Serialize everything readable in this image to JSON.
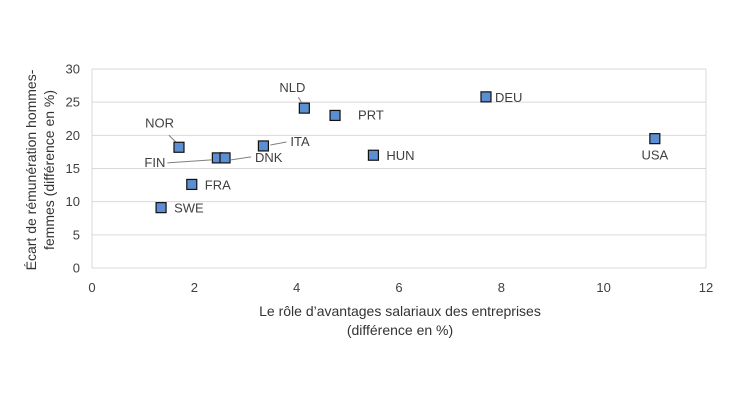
{
  "chart_data": {
    "type": "scatter",
    "xlabel_lines": [
      "Le rôle d’avantages salariaux des entreprises",
      "(différence en %)"
    ],
    "ylabel_lines": [
      "Écart de rémunération hommes-",
      "femmes (différence en %)"
    ],
    "xlim": [
      0,
      12
    ],
    "ylim": [
      0,
      30
    ],
    "xticks": [
      0,
      2,
      4,
      6,
      8,
      10,
      12
    ],
    "yticks": [
      0,
      5,
      10,
      15,
      20,
      25,
      30
    ],
    "grid": "horizontal",
    "colors": {
      "marker": "#5b8fd1",
      "marker_edge": "#111111",
      "grid": "#d9d9d9",
      "leader": "#7f7f7f"
    },
    "points": [
      {
        "label": "NOR",
        "x": 1.7,
        "y": 18.2
      },
      {
        "label": "FIN",
        "x": 2.45,
        "y": 16.6
      },
      {
        "label": "DNK",
        "x": 2.6,
        "y": 16.6
      },
      {
        "label": "FRA",
        "x": 1.95,
        "y": 12.6
      },
      {
        "label": "SWE",
        "x": 1.35,
        "y": 9.1
      },
      {
        "label": "ITA",
        "x": 3.35,
        "y": 18.4
      },
      {
        "label": "NLD",
        "x": 4.15,
        "y": 24.1
      },
      {
        "label": "PRT",
        "x": 4.75,
        "y": 23.0
      },
      {
        "label": "HUN",
        "x": 5.5,
        "y": 17.0
      },
      {
        "label": "DEU",
        "x": 7.7,
        "y": 25.8
      },
      {
        "label": "USA",
        "x": 11.0,
        "y": 19.5
      }
    ]
  }
}
